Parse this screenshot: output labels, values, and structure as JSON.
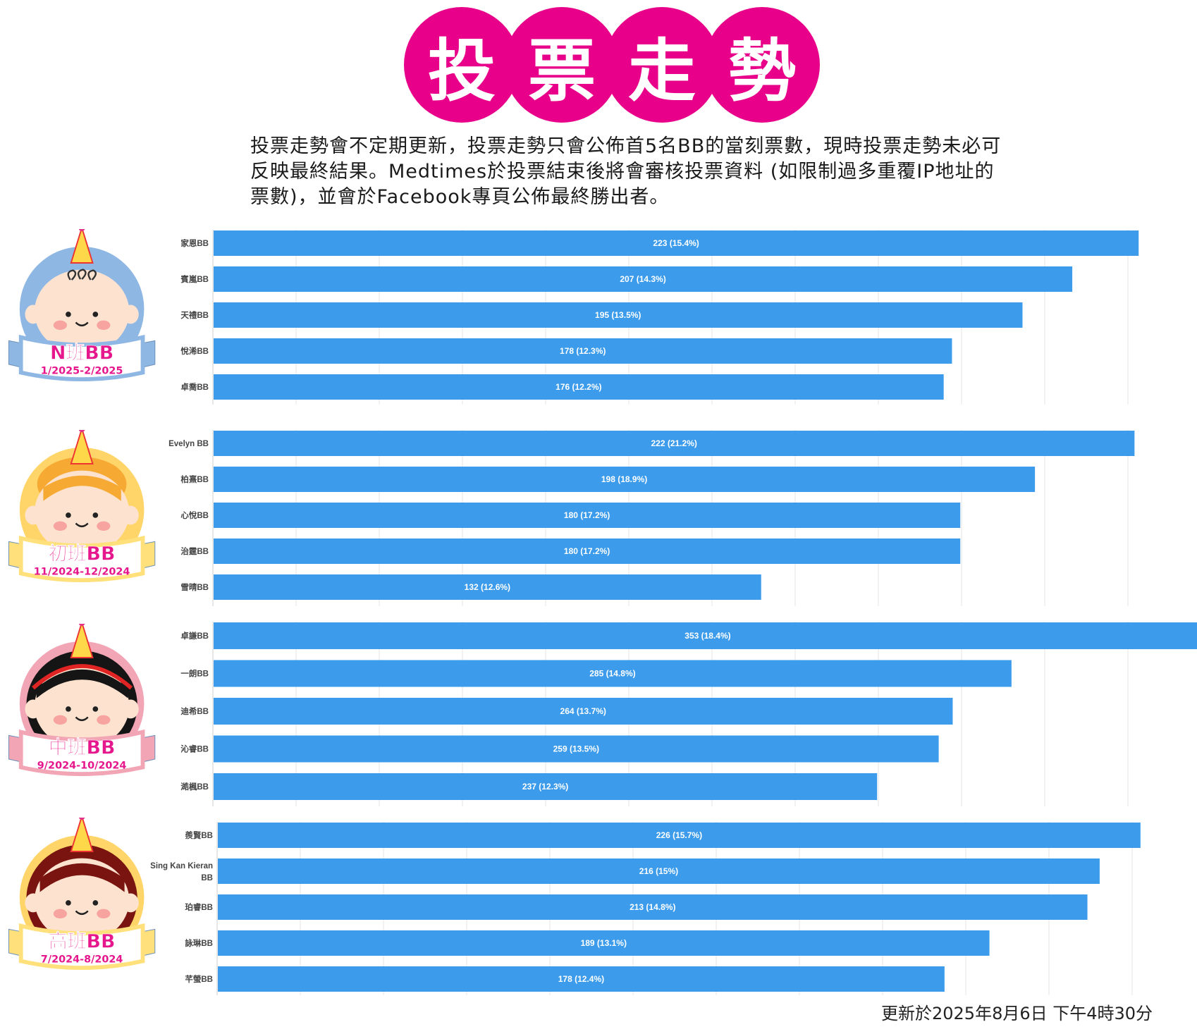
{
  "title": {
    "chars": [
      "投",
      "票",
      "走",
      "勢"
    ]
  },
  "intro_text": "投票走勢會不定期更新，投票走勢只會公佈首5名BB的當刻票數，現時投票走勢未必可反映最終結果。Medtimes於投票結束後將會審核投票資料 (如限制過多重覆IP地址的票數)，並會於Facebook專頁公佈最終勝出者。",
  "updated_text": "更新於2025年8月6日 下午4時30分",
  "colors": {
    "title_circle": "#e8008a",
    "bar": "#3c9ceb",
    "grid": "#e6e6e6"
  },
  "mascots": [
    {
      "name": "N班BB",
      "dates": "1/2025-2/2025",
      "ribbon_color": "#8fb7e4",
      "ring_color": "#8fb7e4",
      "hair": "baby-curl"
    },
    {
      "name": "初班BB",
      "dates": "11/2024-12/2024",
      "ribbon_color": "#ffe07a",
      "ring_color": "#ffd56a",
      "hair": "orange"
    },
    {
      "name": "中班BB",
      "dates": "9/2024-10/2024",
      "ribbon_color": "#f2a5b5",
      "ring_color": "#f2a5b5",
      "hair": "black"
    },
    {
      "name": "高班BB",
      "dates": "7/2024-8/2024",
      "ribbon_color": "#ffe07a",
      "ring_color": "#ffd56a",
      "hair": "brown"
    }
  ],
  "chart_data": [
    {
      "type": "bar",
      "orientation": "horizontal",
      "categories": [
        "家恩BB",
        "賓嵐BB",
        "天禮BB",
        "悅浠BB",
        "卓喬BB"
      ],
      "values": [
        223,
        207,
        195,
        178,
        176
      ],
      "labels": [
        "223 (15.4%)",
        "207 (14.3%)",
        "195 (13.5%)",
        "178 (12.3%)",
        "176 (12.2%)"
      ],
      "xlim": [
        0,
        225
      ],
      "grid": true
    },
    {
      "type": "bar",
      "orientation": "horizontal",
      "categories": [
        "Evelyn BB",
        "柏熹BB",
        "心悅BB",
        "治霆BB",
        "雪晴BB"
      ],
      "values": [
        222,
        198,
        180,
        180,
        132
      ],
      "labels": [
        "222 (21.2%)",
        "198 (18.9%)",
        "180 (17.2%)",
        "180 (17.2%)",
        "132 (12.6%)"
      ],
      "xlim": [
        0,
        225
      ],
      "grid": true
    },
    {
      "type": "bar",
      "orientation": "horizontal",
      "categories": [
        "卓謙BB",
        "一朗BB",
        "迪希BB",
        "沁睿BB",
        "澔楓BB"
      ],
      "values": [
        353,
        285,
        264,
        259,
        237
      ],
      "labels": [
        "353 (18.4%)",
        "285 (14.8%)",
        "264 (13.7%)",
        "259 (13.5%)",
        "237 (12.3%)"
      ],
      "xlim": [
        0,
        350
      ],
      "grid": true
    },
    {
      "type": "bar",
      "orientation": "horizontal",
      "categories": [
        "羨賢BB",
        "Sing Kan Kieran BB",
        "珀睿BB",
        "詠琳BB",
        "芊螢BB"
      ],
      "values": [
        226,
        216,
        213,
        189,
        178
      ],
      "labels": [
        "226 (15.7%)",
        "216 (15%)",
        "213 (14.8%)",
        "189 (13.1%)",
        "178 (12.4%)"
      ],
      "xlim": [
        0,
        230
      ],
      "grid": true
    }
  ]
}
